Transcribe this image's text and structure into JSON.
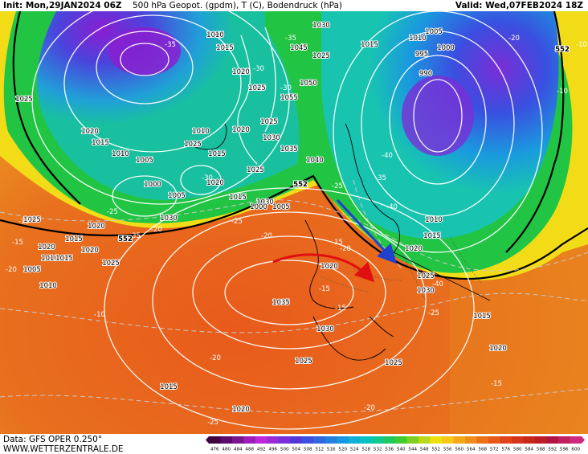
{
  "header": {
    "init": "Init: Mon,29JAN2024 06Z",
    "title": "500 hPa Geopot. (gpdm), T (C), Bodendruck (hPa)",
    "valid": "Valid: Wed,07FEB2024 18Z"
  },
  "footer": {
    "source": "Data: GFS OPER 0.250°",
    "site": "WWW.WETTERZENTRALE.DE"
  },
  "legend": {
    "ticks": [
      "476",
      "480",
      "484",
      "488",
      "492",
      "496",
      "500",
      "504",
      "508",
      "512",
      "516",
      "520",
      "524",
      "528",
      "532",
      "536",
      "540",
      "544",
      "548",
      "552",
      "556",
      "560",
      "564",
      "568",
      "572",
      "576",
      "580",
      "584",
      "588",
      "592",
      "596",
      "600"
    ],
    "colors": [
      "#400040",
      "#5a0a6a",
      "#7a1490",
      "#9c1eb6",
      "#be28dc",
      "#9a2cd8",
      "#7632d8",
      "#5238d8",
      "#3c50e0",
      "#3068e0",
      "#2480e0",
      "#1898e0",
      "#10b0d8",
      "#08c4c0",
      "#10c890",
      "#20c860",
      "#40cc30",
      "#7cd020",
      "#b8d818",
      "#eee010",
      "#f8c818",
      "#f4a818",
      "#f08c18",
      "#ec7018",
      "#e85818",
      "#e04418",
      "#d43418",
      "#c82818",
      "#bc1c28",
      "#b01440",
      "#c02060",
      "#d02880"
    ],
    "tick_color": "#000000"
  },
  "map": {
    "colors": {
      "warm_orange": "#e8661e",
      "deep_orange": "#d8481c",
      "yellow": "#f2dc18",
      "green": "#22c444",
      "cyan": "#10b4d0",
      "blue": "#2a5ad8",
      "purple": "#7a2ed6",
      "arrow_blue": "#2040d0",
      "arrow_red": "#e01010"
    },
    "height_labels": [
      "552",
      "552",
      "552"
    ],
    "pressure_labels": [
      "1005",
      "1010",
      "1015",
      "1020",
      "1025",
      "1030",
      "1035",
      "1040",
      "1045",
      "1050",
      "1055",
      "1025",
      "1020",
      "1015",
      "1010",
      "1005",
      "1000",
      "1005",
      "1010",
      "1015",
      "1020",
      "1025",
      "1030",
      "1035",
      "1030",
      "1025",
      "1020",
      "1015",
      "1010",
      "1005",
      "1010",
      "1015",
      "1020",
      "1025",
      "1030",
      "1025",
      "1015",
      "1010",
      "1005",
      "1000",
      "995",
      "990",
      "1010",
      "1015",
      "1020",
      "1025",
      "1030",
      "1015",
      "1020",
      "1025",
      "1020",
      "1025",
      "1020",
      "1015",
      "1020",
      "1030",
      "1025",
      "1020",
      "1015",
      "1000",
      "1005",
      "1010",
      "1015",
      "1020",
      "1025"
    ],
    "temperature_labels": [
      "-35",
      "-30",
      "-30",
      "-35",
      "-25",
      "-20",
      "-25",
      "-35",
      "-20",
      "-15",
      "-10",
      "-15",
      "-20",
      "-25",
      "-30",
      "-40",
      "-40",
      "-35",
      "-40",
      "-25",
      "-20",
      "-15",
      "-10",
      "-10",
      "-20",
      "-15",
      "-20",
      "-15",
      "-15",
      "-20",
      "-25"
    ],
    "legend_label_upper_right": "552"
  }
}
